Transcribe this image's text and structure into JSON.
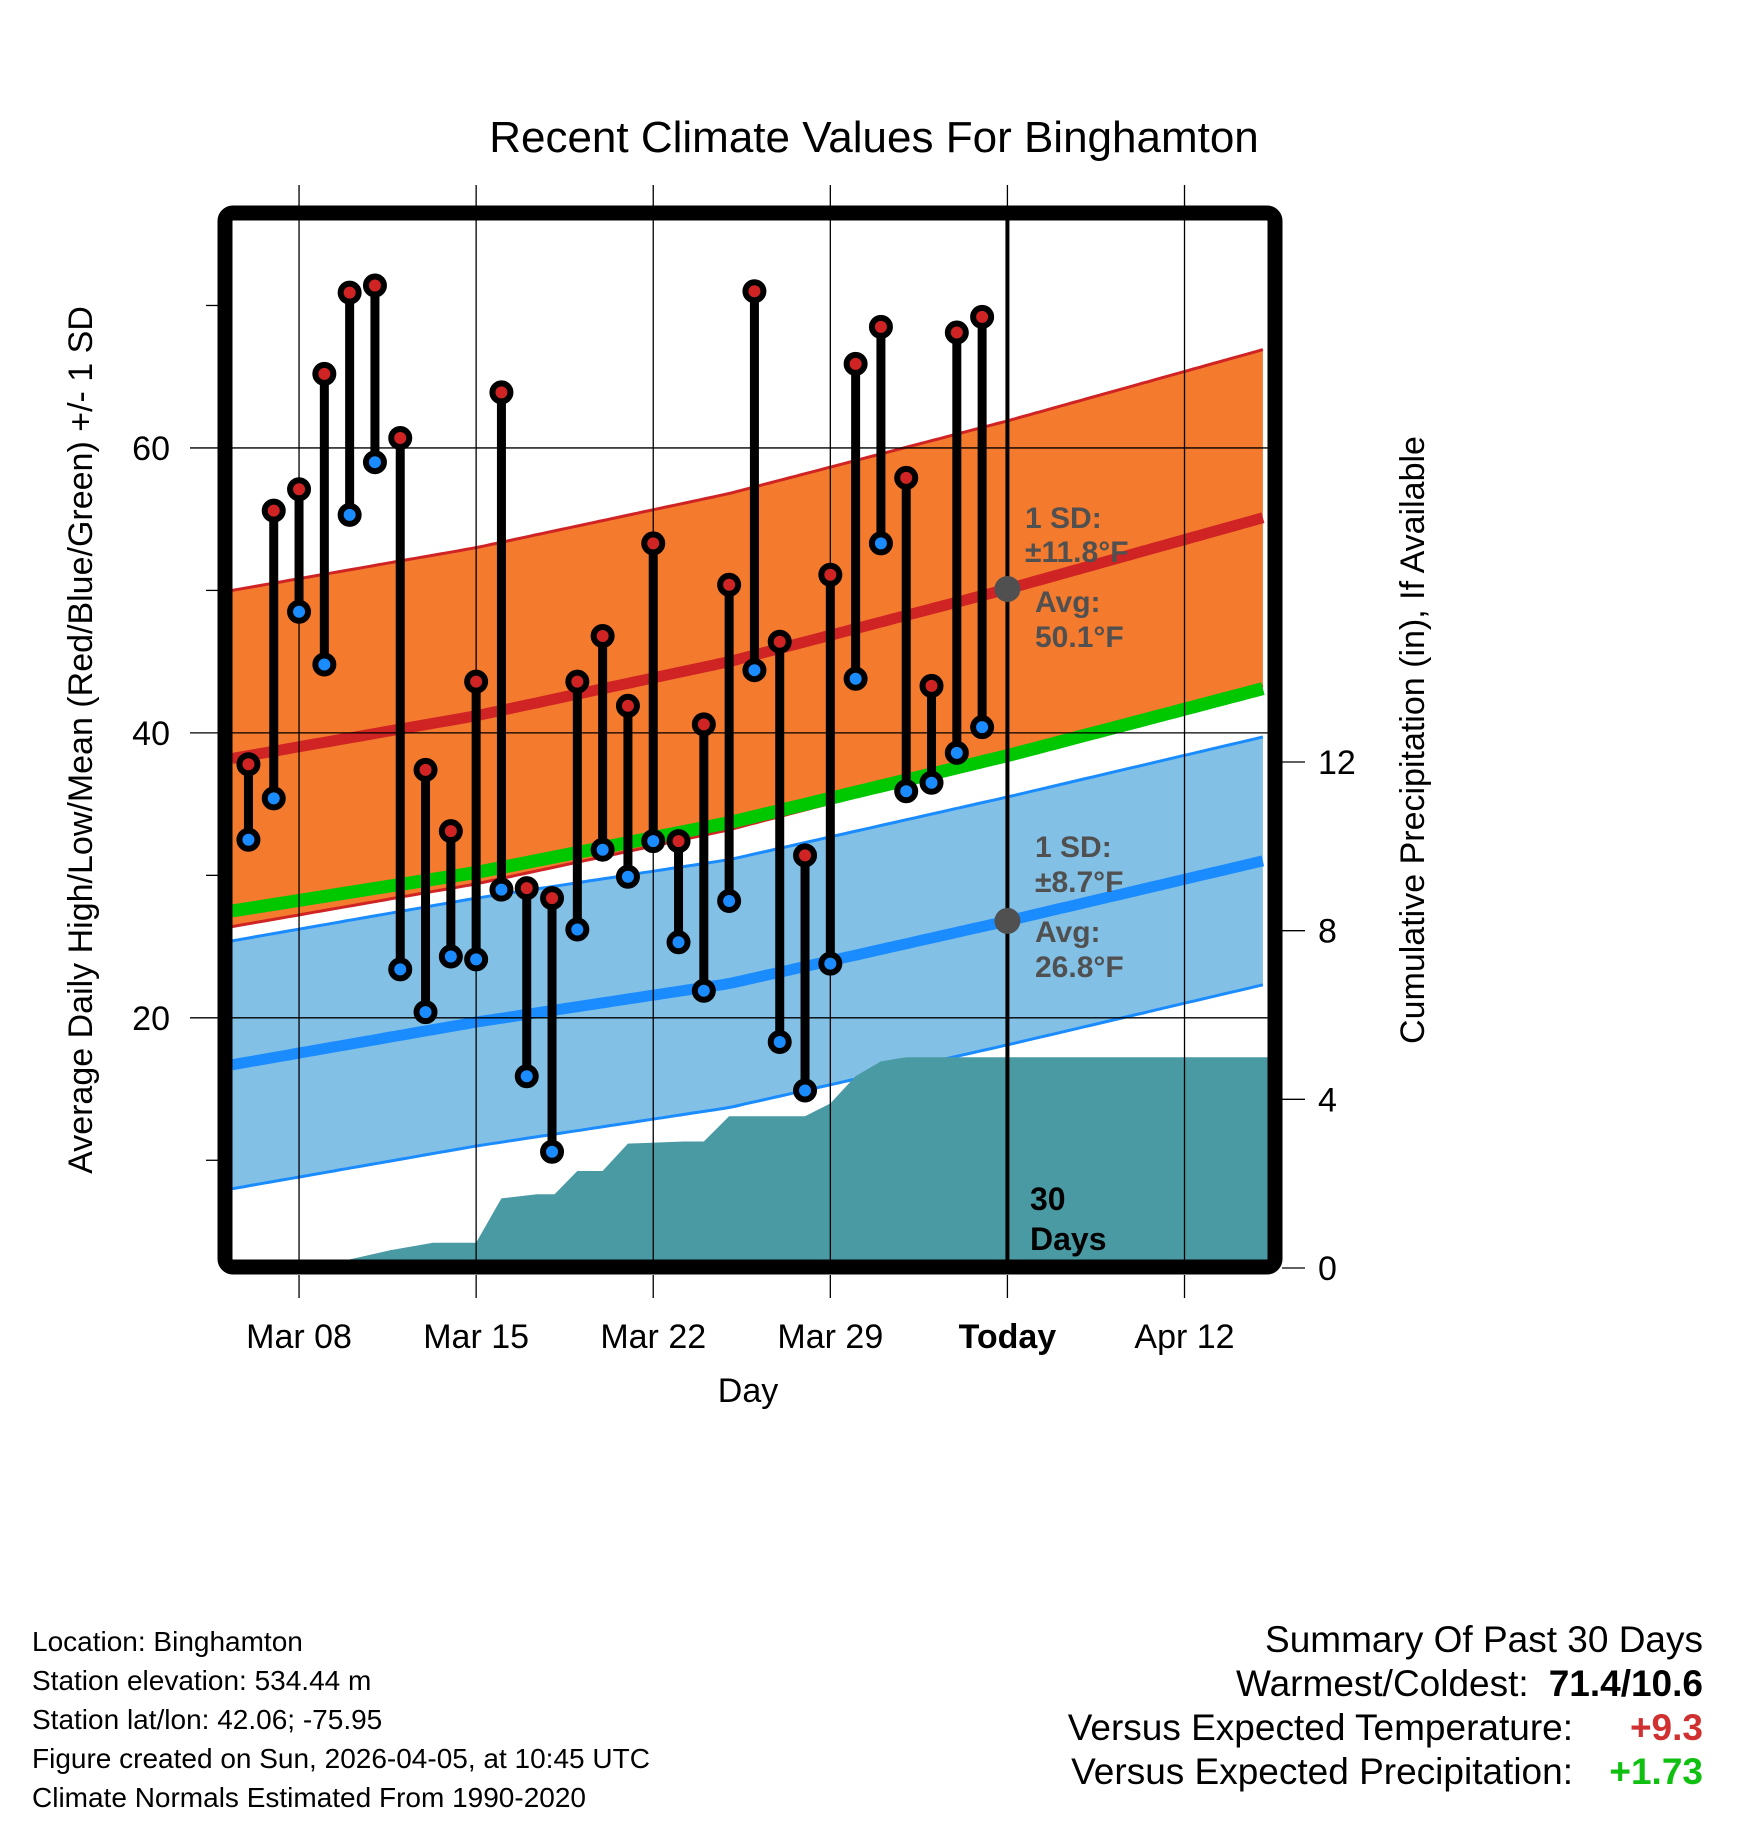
{
  "chart_data": {
    "type": "line",
    "title": "Recent Climate Values For Binghamton",
    "xlabel": "Day",
    "ylabel": "Average Daily High/Low/Mean (Red/Blue/Green) +/- 1 SD",
    "ylabel_right": "Cumulative Precipitation (in), If Available",
    "x_ticks": [
      {
        "day": 3,
        "label": "Mar 08"
      },
      {
        "day": 10,
        "label": "Mar 15"
      },
      {
        "day": 17,
        "label": "Mar 22"
      },
      {
        "day": 24,
        "label": "Mar 29"
      },
      {
        "day": 31,
        "label": "Today"
      },
      {
        "day": 38,
        "label": "Apr 12"
      }
    ],
    "xlim": [
      0.35,
      41.3
    ],
    "x_day_origin": "Mar 05",
    "ylim": [
      3,
      76
    ],
    "y_ticks": [
      20,
      40,
      60
    ],
    "y_minor_ticks": [
      10,
      30,
      50,
      70
    ],
    "y2lim": [
      0,
      12.2
    ],
    "y2_ticks": [
      0,
      4,
      8,
      12
    ],
    "grid": true,
    "today_day": 31,
    "today_label": "30 Days",
    "observed": {
      "dates": [
        "Mar 06",
        "Mar 07",
        "Mar 08",
        "Mar 09",
        "Mar 10",
        "Mar 11",
        "Mar 12",
        "Mar 13",
        "Mar 14",
        "Mar 15",
        "Mar 16",
        "Mar 17",
        "Mar 18",
        "Mar 19",
        "Mar 20",
        "Mar 21",
        "Mar 22",
        "Mar 23",
        "Mar 24",
        "Mar 25",
        "Mar 26",
        "Mar 27",
        "Mar 28",
        "Mar 29",
        "Mar 30",
        "Mar 31",
        "Apr 01",
        "Apr 02",
        "Apr 03",
        "Apr 04"
      ],
      "days": [
        1,
        2,
        3,
        4,
        5,
        6,
        7,
        8,
        9,
        10,
        11,
        12,
        13,
        14,
        15,
        16,
        17,
        18,
        19,
        20,
        21,
        22,
        23,
        24,
        25,
        26,
        27,
        28,
        29,
        30
      ],
      "high": [
        37.8,
        55.6,
        57.1,
        65.2,
        70.9,
        71.4,
        60.7,
        37.4,
        33.1,
        43.6,
        63.9,
        29.1,
        28.4,
        43.6,
        46.8,
        41.9,
        53.3,
        32.4,
        40.6,
        50.4,
        71.0,
        46.4,
        31.4,
        51.1,
        65.9,
        68.5,
        57.9,
        43.3,
        68.1,
        69.2
      ],
      "low": [
        32.5,
        35.4,
        48.5,
        44.8,
        55.3,
        59.0,
        23.4,
        20.4,
        24.3,
        24.1,
        29.0,
        15.9,
        10.6,
        26.2,
        31.8,
        29.9,
        32.4,
        25.3,
        21.9,
        28.2,
        44.4,
        18.3,
        14.9,
        23.8,
        43.8,
        53.3,
        35.9,
        36.5,
        38.6,
        40.4
      ]
    },
    "normals": {
      "days": [
        0.35,
        10,
        20,
        31,
        41.3
      ],
      "high_avg": [
        38.2,
        41.2,
        45.0,
        50.1,
        55.2
      ],
      "high_sd": 11.8,
      "low_avg": [
        16.7,
        19.7,
        22.4,
        26.8,
        31.1
      ],
      "low_sd": 8.7,
      "mean_avg": [
        27.5,
        30.2,
        33.7,
        38.4,
        43.2
      ]
    },
    "precip_cumulative": {
      "days": [
        0.35,
        1.0,
        1.6,
        4.6,
        6.6,
        8.3,
        10.0,
        11.0,
        12.4,
        13.1,
        14.0,
        15.0,
        16.0,
        18.2,
        19.0,
        20.0,
        21.0,
        22.2,
        23.0,
        24.0,
        25.0,
        26.0,
        27.0,
        28.2,
        31.0,
        41.3
      ],
      "values": [
        0.0,
        0.05,
        0.15,
        0.15,
        0.42,
        0.6,
        0.6,
        1.65,
        1.75,
        1.75,
        2.3,
        2.3,
        2.95,
        3.0,
        3.0,
        3.6,
        3.6,
        3.6,
        3.6,
        3.9,
        4.55,
        4.9,
        5.0,
        5.0,
        5.0,
        5.0
      ]
    },
    "annotations": {
      "high_sd_label": "1 SD:",
      "high_sd_value": "±11.8°F",
      "high_avg_label": "Avg:",
      "high_avg_value": "50.1°F",
      "low_sd_label": "1 SD:",
      "low_sd_value": "±8.7°F",
      "low_avg_label": "Avg:",
      "low_avg_value": "26.8°F"
    },
    "colors": {
      "high_band": "#f47a2e",
      "high_line": "#d02424",
      "low_band": "#82c0e6",
      "low_line": "#1a8cff",
      "mean_line": "#00c800",
      "precip": "#4a9aa4",
      "marker_high": "#d02424",
      "marker_low": "#1a8cff",
      "annotation": "#505050"
    }
  },
  "footer": {
    "location": "Location: Binghamton",
    "elevation": "Station elevation: 534.44 m",
    "latlon": "Station lat/lon: 42.06; -75.95",
    "created": "Figure created on Sun, 2026-04-05, at 10:45 UTC",
    "normals": "Climate Normals Estimated From 1990-2020"
  },
  "summary": {
    "title": "Summary Of Past 30 Days",
    "warmest_label": "Warmest/Coldest:",
    "warmest_value": "71.4/10.6",
    "temp_label": "Versus Expected Temperature:",
    "temp_value": "+9.3",
    "precip_label": "Versus Expected Precipitation:",
    "precip_value": "+1.73"
  }
}
